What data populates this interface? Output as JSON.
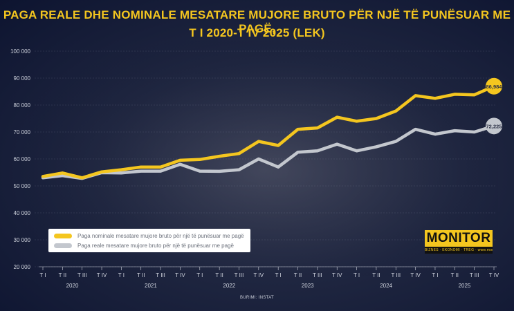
{
  "title_line1": "PAGA REALE DHE NOMINALE MESATARE MUJORE BRUTO PËR NJË TË PUNËSUAR ME PAGË,",
  "title_line2": "T I 2020-T IV 2025 (LEK)",
  "source": "BURIMI: INSTAT",
  "logo": {
    "name": "MONITOR",
    "tagline": "BIZNES · EKONOMI · TREG · www.monitor.al"
  },
  "colors": {
    "nominal": "#f4c61f",
    "real": "#c3c7ce",
    "title": "#f4c61f",
    "background": "#1a2140"
  },
  "chart_data": {
    "type": "line",
    "title": "PAGA REALE DHE NOMINALE MESATARE MUJORE BRUTO PËR NJË TË PUNËSUAR ME PAGË, T I 2020-T IV 2025 (LEK)",
    "categories": [
      "T I",
      "T II",
      "T III",
      "T IV",
      "T I",
      "T II",
      "T III",
      "T IV",
      "T I",
      "T II",
      "T III",
      "T IV",
      "T I",
      "T II",
      "T III",
      "T IV",
      "T I",
      "T II",
      "T III",
      "T IV",
      "T I",
      "T II",
      "T III",
      "T IV"
    ],
    "years": [
      "2020",
      "2021",
      "2022",
      "2023",
      "2024",
      "2025"
    ],
    "ylim": [
      20000,
      100000
    ],
    "yticks": [
      20000,
      30000,
      40000,
      50000,
      60000,
      70000,
      80000,
      90000,
      100000
    ],
    "ytick_labels": [
      "20 000",
      "30 000",
      "40 000",
      "50 000",
      "60 000",
      "70 000",
      "80 000",
      "90 000",
      "100 000"
    ],
    "grid": true,
    "legend_position": "bottom-left",
    "series": [
      {
        "name": "Paga nominale mesatare mujore bruto për një të punësuar me pagë",
        "values": [
          53500,
          54800,
          53000,
          55200,
          56000,
          57000,
          57000,
          59500,
          59800,
          61000,
          62000,
          66500,
          65000,
          71000,
          71500,
          75500,
          74000,
          75000,
          77800,
          83500,
          82500,
          84000,
          83800,
          86984
        ],
        "end_label": "86,984"
      },
      {
        "name": "Paga reale mesatare mujore bruto për një të punësuar me pagë",
        "values": [
          53000,
          53800,
          52800,
          54900,
          54800,
          55500,
          55500,
          58000,
          55500,
          55400,
          56000,
          60000,
          57000,
          62500,
          63000,
          65500,
          63000,
          64500,
          66500,
          71000,
          69200,
          70500,
          70000,
          72225
        ],
        "end_label": "72,225"
      }
    ]
  }
}
